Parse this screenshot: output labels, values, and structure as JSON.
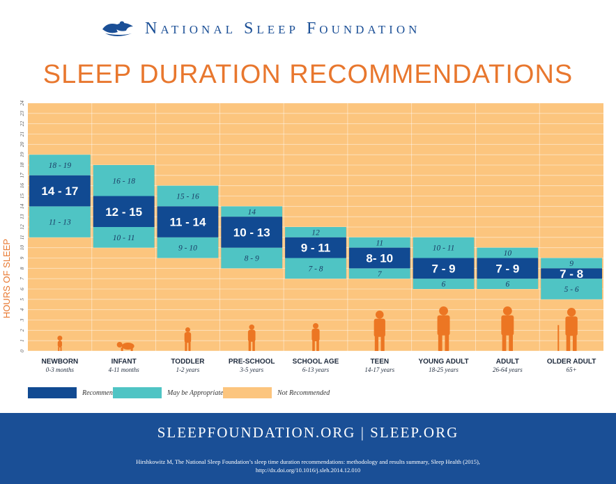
{
  "header": {
    "org_name": "National Sleep Foundation",
    "title": "SLEEP DURATION RECOMMENDATIONS"
  },
  "colors": {
    "recommended": "#114a92",
    "may_be_appropriate": "#4fc4c4",
    "not_recommended": "#fcc57e",
    "title": "#e8772e",
    "footer_bg": "#1a4f96",
    "figure": "#ec7623"
  },
  "legend": [
    {
      "label": "Recommended",
      "color_key": "recommended"
    },
    {
      "label": "May be Appropriate",
      "color_key": "may_be_appropriate"
    },
    {
      "label": "Not Recommended",
      "color_key": "not_recommended"
    }
  ],
  "chart_data": {
    "type": "bar",
    "ylabel": "HOURS OF SLEEP",
    "ylim": [
      0,
      24
    ],
    "yticks": [
      0,
      1,
      2,
      3,
      4,
      5,
      6,
      7,
      8,
      9,
      10,
      11,
      12,
      13,
      14,
      15,
      16,
      17,
      18,
      19,
      20,
      21,
      22,
      23,
      24
    ],
    "grid": true,
    "legend_position": "bottom-left",
    "categories": [
      {
        "name": "NEWBORN",
        "age": "0-3 months",
        "icon": "baby-figure"
      },
      {
        "name": "INFANT",
        "age": "4-11 months",
        "icon": "crawling-infant-figure"
      },
      {
        "name": "TODDLER",
        "age": "1-2 years",
        "icon": "toddler-figure"
      },
      {
        "name": "PRE-SCHOOL",
        "age": "3-5 years",
        "icon": "preschooler-figure"
      },
      {
        "name": "SCHOOL AGE",
        "age": "6-13 years",
        "icon": "child-figure"
      },
      {
        "name": "TEEN",
        "age": "14-17 years",
        "icon": "teen-figure"
      },
      {
        "name": "YOUNG ADULT",
        "age": "18-25 years",
        "icon": "young-adult-figure"
      },
      {
        "name": "ADULT",
        "age": "26-64 years",
        "icon": "adult-figure"
      },
      {
        "name": "OLDER ADULT",
        "age": "65+",
        "icon": "older-adult-with-cane-figure"
      }
    ],
    "series": [
      {
        "name": "Recommended",
        "ranges": [
          [
            14,
            17
          ],
          [
            12,
            15
          ],
          [
            11,
            14
          ],
          [
            10,
            13
          ],
          [
            9,
            11
          ],
          [
            8,
            10
          ],
          [
            7,
            9
          ],
          [
            7,
            9
          ],
          [
            7,
            8
          ]
        ],
        "labels": [
          "14 - 17",
          "12 - 15",
          "11 - 14",
          "10 - 13",
          "9 - 11",
          "8- 10",
          "7 - 9",
          "7 - 9",
          "7 - 8"
        ]
      },
      {
        "name": "May be Appropriate",
        "upper_ranges": [
          [
            17,
            19
          ],
          [
            15,
            18
          ],
          [
            14,
            16
          ],
          [
            13,
            14
          ],
          [
            11,
            12
          ],
          [
            10,
            11
          ],
          [
            9,
            11
          ],
          [
            9,
            10
          ],
          [
            8,
            9
          ]
        ],
        "upper_labels": [
          "18 - 19",
          "16 - 18",
          "15 - 16",
          "14",
          "12",
          "11",
          "10 - 11",
          "10",
          "9"
        ],
        "lower_ranges": [
          [
            11,
            14
          ],
          [
            10,
            12
          ],
          [
            9,
            11
          ],
          [
            8,
            10
          ],
          [
            7,
            9
          ],
          [
            7,
            8
          ],
          [
            6,
            7
          ],
          [
            6,
            7
          ],
          [
            5,
            7
          ]
        ],
        "lower_labels": [
          "11 - 13",
          "10 - 11",
          "9 - 10",
          "8 - 9",
          "7 - 8",
          "7",
          "6",
          "6",
          "5 - 6"
        ]
      }
    ]
  },
  "footer": {
    "urls": "SLEEPFOUNDATION.ORG  |  SLEEP.ORG",
    "citation_line1": "Hirshkowitz M, The National Sleep Foundation’s sleep time duration recommendations: methodology and results summary, Sleep Health (2015),",
    "citation_line2": "http://dx.doi.org/10.1016/j.sleh.2014.12.010"
  }
}
